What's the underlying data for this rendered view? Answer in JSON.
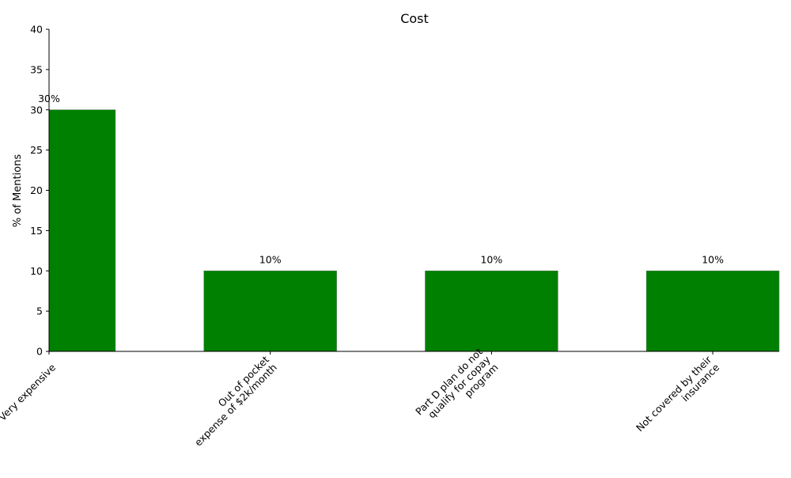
{
  "chart_data": {
    "type": "bar",
    "title": "Cost",
    "xlabel": "",
    "ylabel": "% of Mentions",
    "categories": [
      [
        "Very expensive"
      ],
      [
        "Out of pocket",
        "expense of $2k/month"
      ],
      [
        "Part D plan do not",
        "qualify for copay",
        "program"
      ],
      [
        "Not covered by their",
        "insurance"
      ]
    ],
    "values": [
      30,
      10,
      10,
      10
    ],
    "data_labels": [
      "30%",
      "10%",
      "10%",
      "10%"
    ],
    "ylim": [
      0,
      40
    ],
    "yticks": [
      0,
      5,
      10,
      15,
      20,
      25,
      30,
      35,
      40
    ],
    "grid": false,
    "legend": "none",
    "colors": {
      "bar": "#008000",
      "bar_edge": "#5a7a5a",
      "axis": "#000000"
    }
  }
}
